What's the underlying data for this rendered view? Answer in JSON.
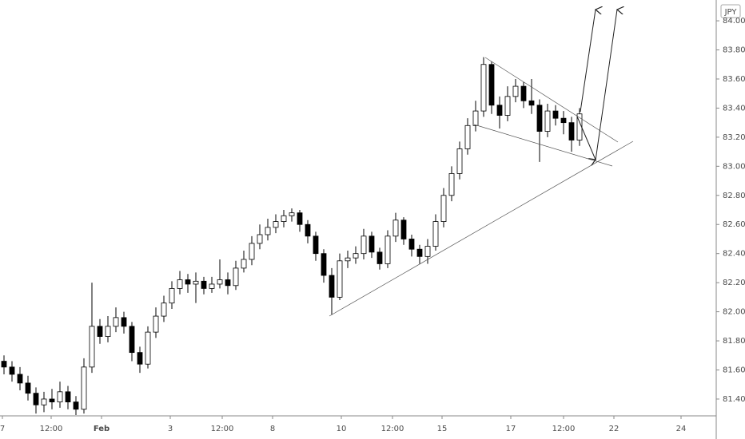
{
  "chart_data": {
    "type": "candlestick",
    "currency": "JPY",
    "xlim": [
      0,
      89.6
    ],
    "ylim": [
      81.29,
      84.143
    ],
    "xticks": [
      {
        "value": 0.3,
        "label": "7"
      },
      {
        "value": 6.4,
        "label": "12:00"
      },
      {
        "value": 12.7,
        "label": "Feb"
      },
      {
        "value": 21.3,
        "label": "3"
      },
      {
        "value": 27.8,
        "label": "12:00"
      },
      {
        "value": 34.1,
        "label": "8"
      },
      {
        "value": 42.7,
        "label": "10"
      },
      {
        "value": 49.1,
        "label": "12:00"
      },
      {
        "value": 55.3,
        "label": "15"
      },
      {
        "value": 63.9,
        "label": "17"
      },
      {
        "value": 70.5,
        "label": "12:00"
      },
      {
        "value": 76.8,
        "label": "22"
      },
      {
        "value": 85.2,
        "label": "24"
      }
    ],
    "yticks": [
      {
        "value": 81.4,
        "label": "81.400"
      },
      {
        "value": 81.6,
        "label": "81.600"
      },
      {
        "value": 81.8,
        "label": "81.800"
      },
      {
        "value": 82,
        "label": "82.000"
      },
      {
        "value": 82.2,
        "label": "82.200"
      },
      {
        "value": 82.4,
        "label": "82.400"
      },
      {
        "value": 82.6,
        "label": "82.600"
      },
      {
        "value": 82.8,
        "label": "82.800"
      },
      {
        "value": 83,
        "label": "83.000"
      },
      {
        "value": 83.2,
        "label": "83.200"
      },
      {
        "value": 83.4,
        "label": "83.400"
      },
      {
        "value": 83.6,
        "label": "83.600"
      },
      {
        "value": 83.8,
        "label": "83.800"
      },
      {
        "value": 84,
        "label": "84.000"
      }
    ],
    "up_color": "#ffffff",
    "down_color": "#000000",
    "edge_color": "#000000",
    "open": [
      81.66,
      81.62,
      81.57,
      81.51,
      81.44,
      81.36,
      81.4,
      81.38,
      81.45,
      81.38,
      81.33,
      81.62,
      81.9,
      81.83,
      81.9,
      81.96,
      81.9,
      81.72,
      81.64,
      81.86,
      81.97,
      82.06,
      82.16,
      82.22,
      82.19,
      82.21,
      82.16,
      82.19,
      82.22,
      82.18,
      82.3,
      82.36,
      82.47,
      82.53,
      82.58,
      82.62,
      82.66,
      82.68,
      82.6,
      82.52,
      82.4,
      82.25,
      82.1,
      82.35,
      82.37,
      82.4,
      82.52,
      82.41,
      82.33,
      82.52,
      82.63,
      82.5,
      82.43,
      82.38,
      82.45,
      82.62,
      82.8,
      82.95,
      83.12,
      83.28,
      83.38,
      83.7,
      83.42,
      83.35,
      83.48,
      83.55,
      83.45,
      83.42,
      83.24,
      83.38,
      83.33,
      83.3,
      83.18
    ],
    "high": [
      81.7,
      81.66,
      81.62,
      81.56,
      81.48,
      81.45,
      81.47,
      81.52,
      81.49,
      81.42,
      81.68,
      82.2,
      81.95,
      81.97,
      82.03,
      82.0,
      81.93,
      81.76,
      81.9,
      82.03,
      82.11,
      82.21,
      82.28,
      82.26,
      82.27,
      82.24,
      82.24,
      82.36,
      82.27,
      82.35,
      82.42,
      82.52,
      82.6,
      82.64,
      82.67,
      82.7,
      82.71,
      82.7,
      82.63,
      82.55,
      82.43,
      82.3,
      82.4,
      82.42,
      82.45,
      82.57,
      82.55,
      82.44,
      82.56,
      82.68,
      82.65,
      82.53,
      82.46,
      82.5,
      82.67,
      82.85,
      83.0,
      83.17,
      83.33,
      83.45,
      83.75,
      83.72,
      83.48,
      83.55,
      83.6,
      83.58,
      83.6,
      83.46,
      83.43,
      83.42,
      83.38,
      83.34,
      83.4
    ],
    "low": [
      81.57,
      81.52,
      81.46,
      81.39,
      81.3,
      81.31,
      81.33,
      81.34,
      81.33,
      81.29,
      81.3,
      81.58,
      81.78,
      81.79,
      81.86,
      81.85,
      81.66,
      81.58,
      81.61,
      81.82,
      81.93,
      82.02,
      82.12,
      82.13,
      82.06,
      82.12,
      82.13,
      82.16,
      82.12,
      82.15,
      82.27,
      82.32,
      82.43,
      82.49,
      82.54,
      82.58,
      82.62,
      82.55,
      82.47,
      82.35,
      82.2,
      81.98,
      82.08,
      82.3,
      82.33,
      82.36,
      82.37,
      82.29,
      82.3,
      82.48,
      82.46,
      82.38,
      82.33,
      82.33,
      82.42,
      82.58,
      82.76,
      82.91,
      83.08,
      83.24,
      83.34,
      83.36,
      83.26,
      83.31,
      83.44,
      83.4,
      83.36,
      83.03,
      83.2,
      83.28,
      83.22,
      83.1,
      83.14
    ],
    "close": [
      81.62,
      81.57,
      81.51,
      81.44,
      81.36,
      81.4,
      81.38,
      81.45,
      81.38,
      81.33,
      81.62,
      81.9,
      81.83,
      81.9,
      81.96,
      81.9,
      81.72,
      81.64,
      81.86,
      81.97,
      82.06,
      82.16,
      82.22,
      82.19,
      82.21,
      82.16,
      82.19,
      82.22,
      82.18,
      82.3,
      82.36,
      82.47,
      82.53,
      82.58,
      82.62,
      82.66,
      82.68,
      82.6,
      82.52,
      82.4,
      82.25,
      82.1,
      82.35,
      82.37,
      82.4,
      82.52,
      82.41,
      82.33,
      82.52,
      82.63,
      82.5,
      82.43,
      82.38,
      82.45,
      82.62,
      82.8,
      82.95,
      83.12,
      83.28,
      83.38,
      83.7,
      83.42,
      83.35,
      83.48,
      83.55,
      83.45,
      83.42,
      83.24,
      83.38,
      83.33,
      83.3,
      83.18,
      83.36
    ]
  }
}
